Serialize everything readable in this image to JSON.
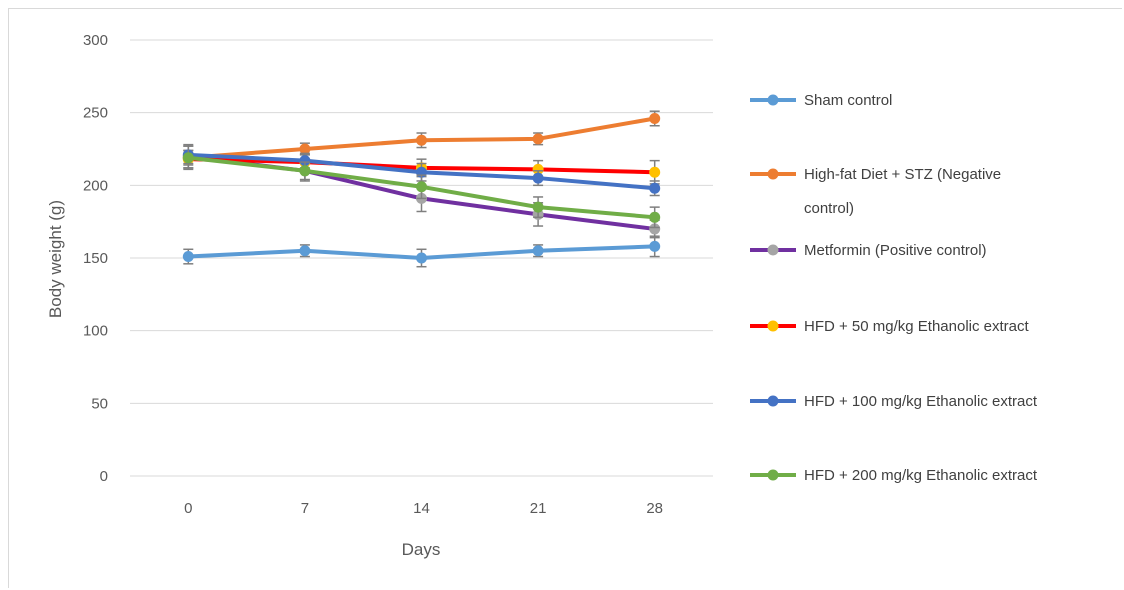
{
  "chart_data": {
    "type": "line",
    "title": "",
    "xlabel": "Days",
    "ylabel": "Body weight  (g)",
    "x": [
      0,
      7,
      14,
      21,
      28
    ],
    "x_tick_labels": [
      "0",
      "7",
      "14",
      "21",
      "28"
    ],
    "ylim": [
      0,
      300
    ],
    "y_ticks": [
      0,
      50,
      100,
      150,
      200,
      250,
      300
    ],
    "y_tick_labels": [
      "0",
      "50",
      "100",
      "150",
      "200",
      "250",
      "300"
    ],
    "grid": "horizontal",
    "legend_position": "right",
    "error_bars": true,
    "series": [
      {
        "name": "Sham control",
        "line_color": "#5b9bd5",
        "marker_color": "#5b9bd5",
        "values": [
          151,
          155,
          150,
          155,
          158
        ],
        "errors": [
          5,
          4,
          6,
          4,
          7
        ]
      },
      {
        "name": "High-fat Diet + STZ (Negative control)",
        "legend_lines": [
          "High-fat Diet + STZ (Negative",
          "control)"
        ],
        "line_color": "#ed7d31",
        "marker_color": "#ed7d31",
        "values": [
          219,
          225,
          231,
          232,
          246
        ],
        "errors": [
          5,
          4,
          5,
          4,
          5
        ]
      },
      {
        "name": "Metformin (Positive control)",
        "line_color": "#7030a0",
        "marker_color": "#a5a5a5",
        "values": [
          220,
          210,
          191,
          180,
          170
        ],
        "errors": [
          8,
          7,
          9,
          8,
          6
        ]
      },
      {
        "name": "HFD + 50 mg/kg Ethanolic extract",
        "line_color": "#ff0000",
        "marker_color": "#ffc000",
        "values": [
          218,
          216,
          212,
          211,
          209
        ],
        "errors": [
          6,
          5,
          6,
          6,
          8
        ]
      },
      {
        "name": "HFD + 100 mg/kg Ethanolic extract",
        "line_color": "#4472c4",
        "marker_color": "#4472c4",
        "values": [
          221,
          217,
          209,
          205,
          198
        ],
        "errors": [
          6,
          5,
          6,
          5,
          5
        ]
      },
      {
        "name": "HFD + 200 mg/kg Ethanolic extract",
        "line_color": "#70ad47",
        "marker_color": "#70ad47",
        "values": [
          219,
          210,
          199,
          185,
          178
        ],
        "errors": [
          8,
          6,
          8,
          7,
          7
        ]
      }
    ]
  }
}
